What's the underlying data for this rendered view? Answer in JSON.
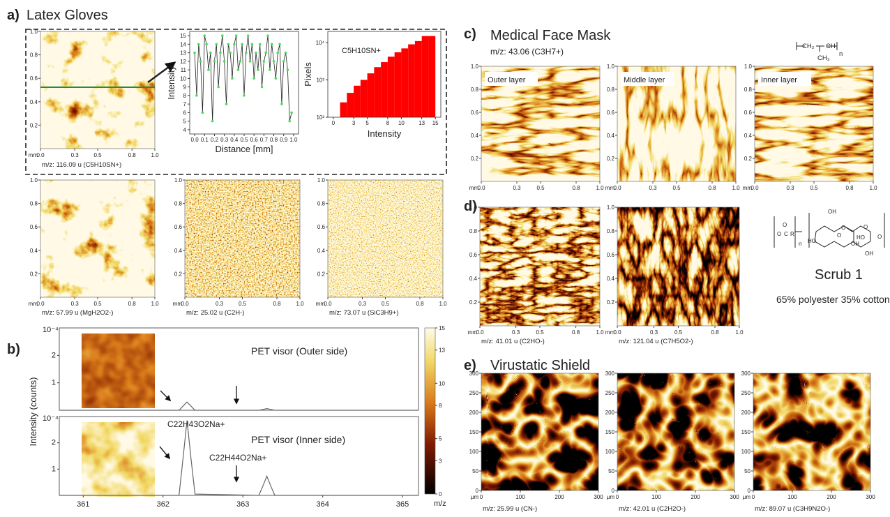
{
  "mm_axis": {
    "unit": "mm",
    "lim": [
      0,
      1
    ],
    "xticks": [
      {
        "value": 0,
        "label": "0.0"
      },
      0.3,
      0.5,
      0.8,
      {
        "value": 1,
        "label": "1.0"
      }
    ],
    "yticks": [
      0.2,
      0.4,
      0.6,
      0.8,
      {
        "value": 1,
        "label": "1.0"
      }
    ]
  },
  "um_axis": {
    "unit": "μm",
    "lim": [
      0,
      300
    ],
    "xticks": [
      0,
      100,
      200,
      300
    ],
    "yticks": [
      0,
      50,
      100,
      150,
      200,
      250,
      300
    ]
  },
  "panel_a": {
    "label": "a)",
    "title": "Latex Gloves",
    "maps": [
      {
        "caption": "m/z: 116.09 u (C5H10SN+)"
      },
      {
        "caption": "m/z: 57.99 u (MgH2O2-)"
      },
      {
        "caption": "m/z: 25.02 u (C2H-)"
      },
      {
        "caption": "m/z: 73.07 u (SiC3H9+)"
      }
    ],
    "profile": {
      "type": "line",
      "xlabel": "Distance [mm]",
      "ylabel": "Intensity",
      "color": "#44dd55",
      "x": [
        0,
        0.02,
        0.04,
        0.06,
        0.08,
        0.1,
        0.12,
        0.14,
        0.16,
        0.18,
        0.2,
        0.22,
        0.24,
        0.26,
        0.28,
        0.3,
        0.32,
        0.34,
        0.36,
        0.38,
        0.4,
        0.42,
        0.44,
        0.46,
        0.48,
        0.5,
        0.52,
        0.54,
        0.56,
        0.58,
        0.6,
        0.62,
        0.64,
        0.66,
        0.68,
        0.7,
        0.72,
        0.74,
        0.76,
        0.78,
        0.8,
        0.82,
        0.84,
        0.86,
        0.88,
        0.9,
        0.92,
        0.94,
        0.96,
        0.98
      ],
      "values": [
        13,
        8,
        14,
        12,
        6,
        15,
        14,
        11,
        13,
        5,
        12,
        14,
        9,
        13,
        15,
        12,
        7,
        14,
        13,
        10,
        14,
        15,
        11,
        12,
        14,
        8,
        13,
        15,
        12,
        14,
        10,
        13,
        11,
        14,
        9,
        12,
        13,
        15,
        11,
        14,
        12,
        10,
        13,
        14,
        7,
        12,
        13,
        11,
        5,
        6
      ],
      "xlim": [
        -0.05,
        1.05
      ],
      "xticks": [
        {
          "value": 0,
          "label": "0.0"
        },
        0.1,
        0.2,
        0.3,
        0.4,
        0.5,
        0.6,
        0.7,
        0.8,
        0.9,
        {
          "value": 1,
          "label": "1.0"
        }
      ],
      "ylim": [
        3.5,
        15.5
      ],
      "yticks": [
        4,
        5,
        6,
        7,
        8,
        9,
        10,
        11,
        12,
        13,
        14,
        15
      ]
    },
    "histogram": {
      "type": "histogram",
      "legend": "C5H10SN+",
      "xlabel": "Intensity",
      "ylabel": "Pixels",
      "color": "#ff0000",
      "log_y": true,
      "bins": [
        1,
        2,
        3,
        4,
        5,
        6,
        7,
        8,
        9,
        10,
        11,
        12,
        13,
        14,
        15
      ],
      "values": [
        250,
        450,
        700,
        1000,
        1500,
        2200,
        3000,
        4200,
        5500,
        7000,
        9000,
        11000,
        15000,
        15000
      ],
      "xlim": [
        -0.8,
        15.8
      ],
      "xticks": [
        0,
        3,
        5,
        8,
        10,
        13,
        15
      ],
      "ylim": [
        100,
        20000
      ],
      "yticks": [
        {
          "value": 100,
          "label": "10²"
        },
        {
          "value": 1000,
          "label": "10³"
        },
        {
          "value": 10000,
          "label": "10⁴"
        }
      ]
    }
  },
  "panel_b": {
    "label": "b)",
    "spectrum": {
      "type": "line",
      "ylabel": "Intensity (counts)",
      "xlabel": "m/z",
      "multiplier": "10⁻⁴",
      "color": "#666666",
      "x": [
        360.7,
        362.2,
        362.25,
        362.3,
        362.35,
        362.4,
        363.2,
        363.25,
        363.3,
        363.35,
        363.4,
        365.2
      ],
      "xlim": [
        360.7,
        365.2
      ],
      "xticks": [
        361,
        362,
        363,
        364,
        365
      ],
      "ylim": [
        0,
        3
      ],
      "yticks": [
        1,
        2
      ],
      "series": [
        {
          "name": "PET visor (Outer side)",
          "values": [
            0,
            0,
            0.15,
            0.3,
            0.15,
            0,
            0,
            0.03,
            0.06,
            0.03,
            0,
            0
          ]
        },
        {
          "name": "PET visor (Inner side)",
          "values": [
            0,
            0,
            1.4,
            2.85,
            1.4,
            0.05,
            0,
            0.35,
            0.73,
            0.35,
            0,
            0
          ]
        }
      ],
      "annotations": [
        "C22H43O2Na+",
        "C22H44O2Na+"
      ]
    },
    "colorbar": {
      "lim": [
        0,
        15
      ],
      "ticks": [
        0,
        3,
        5,
        8,
        10,
        13,
        15
      ]
    }
  },
  "panel_c": {
    "label": "c)",
    "title": "Medical Face Mask",
    "subtitle": "m/z: 43.06 (C3H7+)",
    "formula": [
      "CH₂",
      "CH",
      "CH₃",
      "n"
    ],
    "maps": [
      {
        "label": "Outer layer"
      },
      {
        "label": "Middle layer"
      },
      {
        "label": "Inner layer"
      }
    ]
  },
  "panel_d": {
    "label": "d)",
    "maps": [
      {
        "caption": "m/z: 41.01 u (C2HO-)"
      },
      {
        "caption": "m/z: 121.04 u (C7H5O2-)"
      }
    ],
    "structure": [
      "O",
      "C",
      "O",
      "R",
      "n",
      "OH",
      "HO",
      "O",
      "O",
      "OH",
      "HO",
      "O",
      "OH",
      "O"
    ],
    "sample": "Scrub 1",
    "composition": "65% polyester 35% cotton"
  },
  "panel_e": {
    "label": "e)",
    "title": "Virustatic Shield",
    "maps": [
      {
        "caption": "m/z: 25.99 u (CN-)"
      },
      {
        "caption": "m/z: 42.01 u (C2H2O-)"
      },
      {
        "caption": "m/z: 89.07 u (C3H9N2O-)"
      }
    ]
  }
}
